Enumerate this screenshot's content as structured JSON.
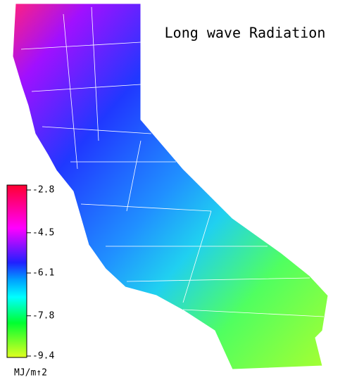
{
  "title": "Long wave Radiation",
  "colorbar": {
    "ticks": [
      -2.8,
      -4.5,
      -6.1,
      -7.8,
      -9.4
    ],
    "unit": "MJ/m↑2"
  }
}
